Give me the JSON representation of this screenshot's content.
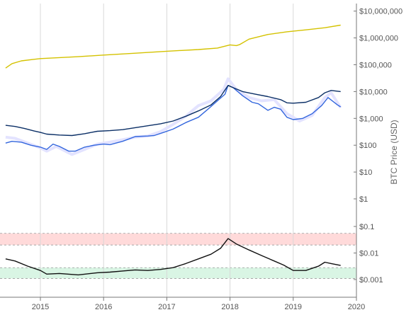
{
  "chart_data": {
    "type": "line",
    "title": "",
    "ylabel": "BTC Price (USD)",
    "x_axis": {
      "type": "time",
      "range": [
        2014.45,
        2020.0
      ],
      "tick_labels": [
        "2015",
        "2016",
        "2017",
        "2018",
        "2019",
        "2020"
      ],
      "tick_values": [
        2015,
        2016,
        2017,
        2018,
        2019,
        2020
      ],
      "grid": true
    },
    "y_axis_price": {
      "scale": "log",
      "tick_labels": [
        "$10,000,000",
        "$1,000,000",
        "$100,000",
        "$10,000",
        "$1,000",
        "$100",
        "$10",
        "$1"
      ],
      "tick_values": [
        10000000,
        1000000,
        100000,
        10000,
        1000,
        100,
        10,
        1
      ]
    },
    "y_axis_ratio": {
      "scale": "log",
      "tick_labels": [
        "$0.1",
        "$0.01",
        "$0.001"
      ],
      "tick_values": [
        0.1,
        0.01,
        0.001
      ]
    },
    "bands": [
      {
        "color": "#ffdada",
        "range": [
          0.02,
          0.055
        ]
      },
      {
        "color": "#d9f5e4",
        "range": [
          0.0011,
          0.0028
        ]
      }
    ],
    "series": [
      {
        "panel": "price",
        "color": "#d4c200",
        "points": [
          [
            2014.45,
            75000
          ],
          [
            2014.55,
            110000
          ],
          [
            2014.7,
            140000
          ],
          [
            2014.9,
            160000
          ],
          [
            2015.0,
            170000
          ],
          [
            2015.3,
            185000
          ],
          [
            2015.6,
            200000
          ],
          [
            2016.0,
            230000
          ],
          [
            2016.5,
            270000
          ],
          [
            2017.0,
            320000
          ],
          [
            2017.5,
            370000
          ],
          [
            2017.8,
            420000
          ],
          [
            2018.0,
            550000
          ],
          [
            2018.1,
            520000
          ],
          [
            2018.15,
            560000
          ],
          [
            2018.3,
            900000
          ],
          [
            2018.6,
            1350000
          ],
          [
            2018.9,
            1700000
          ],
          [
            2019.2,
            2000000
          ],
          [
            2019.5,
            2400000
          ],
          [
            2019.75,
            3000000
          ]
        ]
      },
      {
        "panel": "price",
        "color": "#e3e3ff",
        "points": [
          [
            2014.45,
            200
          ],
          [
            2014.6,
            180
          ],
          [
            2014.8,
            120
          ],
          [
            2015.0,
            80
          ],
          [
            2015.1,
            60
          ],
          [
            2015.25,
            90
          ],
          [
            2015.5,
            45
          ],
          [
            2015.7,
            70
          ],
          [
            2015.9,
            110
          ],
          [
            2016.1,
            130
          ],
          [
            2016.3,
            160
          ],
          [
            2016.5,
            200
          ],
          [
            2016.7,
            220
          ],
          [
            2016.9,
            320
          ],
          [
            2017.1,
            600
          ],
          [
            2017.3,
            1200
          ],
          [
            2017.5,
            3000
          ],
          [
            2017.7,
            4500
          ],
          [
            2017.9,
            12000
          ],
          [
            2017.97,
            30000
          ],
          [
            2018.1,
            12000
          ],
          [
            2018.3,
            6000
          ],
          [
            2018.5,
            4500
          ],
          [
            2018.7,
            5000
          ],
          [
            2018.9,
            1500
          ],
          [
            2019.1,
            800
          ],
          [
            2019.3,
            1300
          ],
          [
            2019.5,
            6000
          ],
          [
            2019.6,
            9000
          ],
          [
            2019.75,
            2500
          ]
        ]
      },
      {
        "panel": "price",
        "color": "#3366dd",
        "points": [
          [
            2014.45,
            120
          ],
          [
            2014.55,
            140
          ],
          [
            2014.7,
            130
          ],
          [
            2014.85,
            100
          ],
          [
            2015.0,
            85
          ],
          [
            2015.1,
            70
          ],
          [
            2015.2,
            110
          ],
          [
            2015.3,
            90
          ],
          [
            2015.45,
            60
          ],
          [
            2015.55,
            60
          ],
          [
            2015.7,
            85
          ],
          [
            2015.85,
            100
          ],
          [
            2016.0,
            110
          ],
          [
            2016.1,
            105
          ],
          [
            2016.3,
            140
          ],
          [
            2016.5,
            210
          ],
          [
            2016.7,
            220
          ],
          [
            2016.8,
            230
          ],
          [
            2016.95,
            300
          ],
          [
            2017.1,
            400
          ],
          [
            2017.3,
            700
          ],
          [
            2017.5,
            1100
          ],
          [
            2017.65,
            2200
          ],
          [
            2017.8,
            4500
          ],
          [
            2017.92,
            8000
          ],
          [
            2017.97,
            17000
          ],
          [
            2018.05,
            14000
          ],
          [
            2018.2,
            7000
          ],
          [
            2018.35,
            4000
          ],
          [
            2018.45,
            3500
          ],
          [
            2018.6,
            2000
          ],
          [
            2018.7,
            2600
          ],
          [
            2018.8,
            2200
          ],
          [
            2018.9,
            1100
          ],
          [
            2019.0,
            900
          ],
          [
            2019.15,
            1000
          ],
          [
            2019.3,
            1500
          ],
          [
            2019.45,
            3000
          ],
          [
            2019.55,
            6000
          ],
          [
            2019.7,
            3200
          ],
          [
            2019.75,
            2700
          ]
        ]
      },
      {
        "panel": "price",
        "color": "#0b2f66",
        "points": [
          [
            2014.45,
            550
          ],
          [
            2014.6,
            500
          ],
          [
            2014.75,
            420
          ],
          [
            2014.9,
            340
          ],
          [
            2015.0,
            300
          ],
          [
            2015.1,
            260
          ],
          [
            2015.3,
            240
          ],
          [
            2015.5,
            230
          ],
          [
            2015.7,
            270
          ],
          [
            2015.9,
            330
          ],
          [
            2016.1,
            350
          ],
          [
            2016.3,
            380
          ],
          [
            2016.5,
            450
          ],
          [
            2016.7,
            530
          ],
          [
            2016.9,
            630
          ],
          [
            2017.1,
            800
          ],
          [
            2017.3,
            1200
          ],
          [
            2017.5,
            1900
          ],
          [
            2017.7,
            3200
          ],
          [
            2017.85,
            6500
          ],
          [
            2017.97,
            17000
          ],
          [
            2018.05,
            14000
          ],
          [
            2018.2,
            10000
          ],
          [
            2018.4,
            8000
          ],
          [
            2018.6,
            6500
          ],
          [
            2018.8,
            5000
          ],
          [
            2018.9,
            3800
          ],
          [
            2019.0,
            3700
          ],
          [
            2019.2,
            4000
          ],
          [
            2019.4,
            6000
          ],
          [
            2019.5,
            9000
          ],
          [
            2019.6,
            11000
          ],
          [
            2019.75,
            10000
          ]
        ]
      },
      {
        "panel": "ratio",
        "color": "#111111",
        "points": [
          [
            2014.45,
            0.006
          ],
          [
            2014.6,
            0.005
          ],
          [
            2014.8,
            0.0032
          ],
          [
            2015.0,
            0.0022
          ],
          [
            2015.1,
            0.0016
          ],
          [
            2015.3,
            0.0017
          ],
          [
            2015.6,
            0.0015
          ],
          [
            2015.9,
            0.0018
          ],
          [
            2016.1,
            0.0019
          ],
          [
            2016.3,
            0.0021
          ],
          [
            2016.5,
            0.0023
          ],
          [
            2016.7,
            0.0022
          ],
          [
            2016.9,
            0.0024
          ],
          [
            2017.1,
            0.0028
          ],
          [
            2017.3,
            0.004
          ],
          [
            2017.5,
            0.006
          ],
          [
            2017.7,
            0.009
          ],
          [
            2017.85,
            0.015
          ],
          [
            2017.97,
            0.035
          ],
          [
            2018.1,
            0.022
          ],
          [
            2018.3,
            0.013
          ],
          [
            2018.5,
            0.008
          ],
          [
            2018.7,
            0.005
          ],
          [
            2018.85,
            0.0035
          ],
          [
            2019.0,
            0.0022
          ],
          [
            2019.2,
            0.0022
          ],
          [
            2019.4,
            0.0032
          ],
          [
            2019.5,
            0.0045
          ],
          [
            2019.6,
            0.004
          ],
          [
            2019.75,
            0.0034
          ]
        ]
      }
    ]
  }
}
